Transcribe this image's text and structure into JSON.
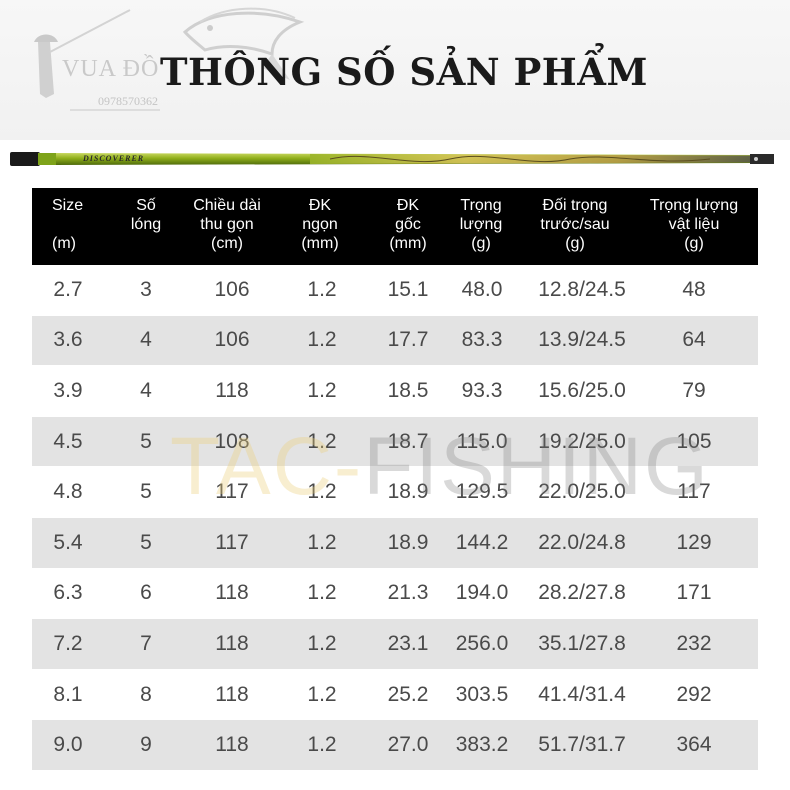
{
  "header": {
    "logo_text": "VUA ĐỒ",
    "logo_phone": "0978570362",
    "title": "THÔNG SỐ SẢN PHẨM"
  },
  "rod": {
    "label": "DISCOVERER",
    "colors": {
      "body": "#8fae1a",
      "gold": "#d8c45a",
      "cap": "#1a1a1a"
    }
  },
  "table": {
    "headers": {
      "size": "Size\n\n(m)",
      "so_long": "Số\nlóng",
      "chieu_dai": "Chiều dài\nthu gọn\n(cm)",
      "dk_ngon": "ĐK\nngọn\n(mm)",
      "dk_goc": "ĐK\ngốc\n(mm)",
      "trong_luong": "Trọng\nlượng\n(g)",
      "doi_trong": "Đối trọng\ntrước/sau\n(g)",
      "trong_luong_vl": "Trọng lượng\nvật liệu\n(g)"
    },
    "rows": [
      [
        "2.7",
        "3",
        "106",
        "1.2",
        "15.1",
        "48.0",
        "12.8/24.5",
        "48"
      ],
      [
        "3.6",
        "4",
        "106",
        "1.2",
        "17.7",
        "83.3",
        "13.9/24.5",
        "64"
      ],
      [
        "3.9",
        "4",
        "118",
        "1.2",
        "18.5",
        "93.3",
        "15.6/25.0",
        "79"
      ],
      [
        "4.5",
        "5",
        "108",
        "1.2",
        "18.7",
        "115.0",
        "19.2/25.0",
        "105"
      ],
      [
        "4.8",
        "5",
        "117",
        "1.2",
        "18.9",
        "129.5",
        "22.0/25.0",
        "117"
      ],
      [
        "5.4",
        "5",
        "117",
        "1.2",
        "18.9",
        "144.2",
        "22.0/24.8",
        "129"
      ],
      [
        "6.3",
        "6",
        "118",
        "1.2",
        "21.3",
        "194.0",
        "28.2/27.8",
        "171"
      ],
      [
        "7.2",
        "7",
        "118",
        "1.2",
        "23.1",
        "256.0",
        "35.1/27.8",
        "232"
      ],
      [
        "8.1",
        "8",
        "118",
        "1.2",
        "25.2",
        "303.5",
        "41.4/31.4",
        "292"
      ],
      [
        "9.0",
        "9",
        "118",
        "1.2",
        "27.0",
        "383.2",
        "51.7/31.7",
        "364"
      ]
    ]
  },
  "watermark": {
    "part_a": "TAC-",
    "part_b": "FISHING"
  }
}
